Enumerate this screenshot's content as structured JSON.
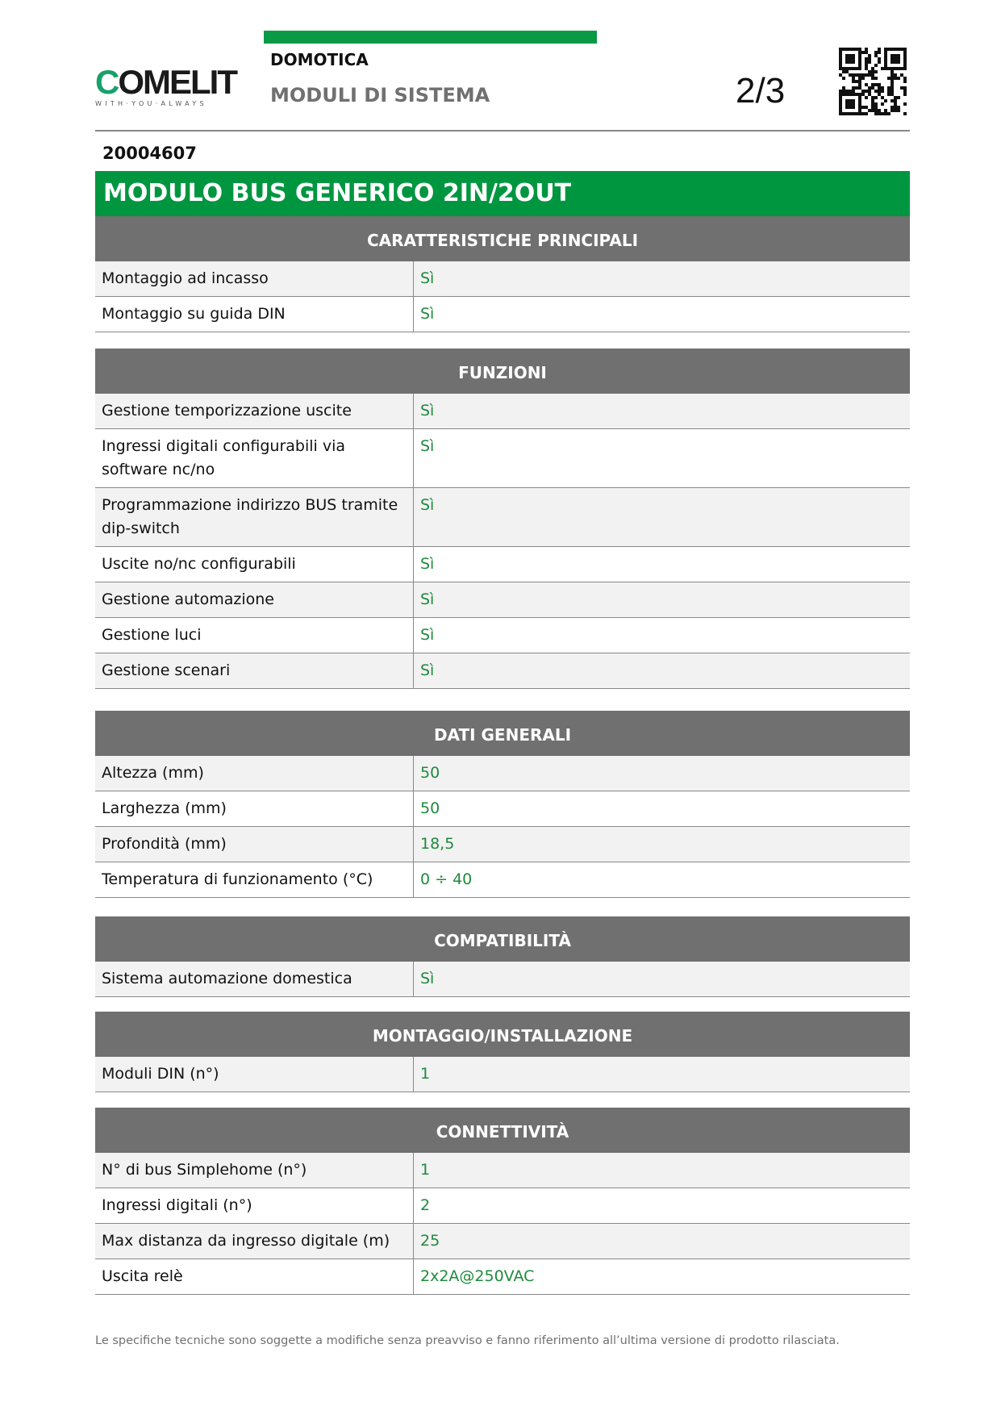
{
  "header": {
    "logo_text": "COMELIT",
    "logo_tagline": "WITH·YOU·ALWAYS",
    "category": "DOMOTICA",
    "subcategory": "MODULI DI SISTEMA",
    "page": "2/3",
    "accent": "#009640"
  },
  "product": {
    "code": "20004607",
    "title": "MODULO BUS GENERICO 2IN/2OUT"
  },
  "sections": [
    {
      "title": "CARATTERISTICHE PRINCIPALI",
      "rows": [
        [
          "Montaggio ad incasso",
          "Sì"
        ],
        [
          "Montaggio su guida DIN",
          "Sì"
        ]
      ]
    },
    {
      "title": "FUNZIONI",
      "rows": [
        [
          "Gestione temporizzazione uscite",
          "Sì"
        ],
        [
          "Ingressi digitali configurabili via software nc/no",
          "Sì"
        ],
        [
          "Programmazione indirizzo BUS tramite dip-switch",
          "Sì"
        ],
        [
          "Uscite no/nc configurabili",
          "Sì"
        ],
        [
          "Gestione automazione",
          "Sì"
        ],
        [
          "Gestione luci",
          "Sì"
        ],
        [
          "Gestione scenari",
          "Sì"
        ]
      ]
    },
    {
      "title": "DATI GENERALI",
      "rows": [
        [
          "Altezza (mm)",
          "50"
        ],
        [
          "Larghezza (mm)",
          "50"
        ],
        [
          "Profondità (mm)",
          "18,5"
        ],
        [
          "Temperatura di funzionamento (°C)",
          "0 ÷ 40"
        ]
      ]
    },
    {
      "title": "COMPATIBILITÀ",
      "rows": [
        [
          "Sistema automazione domestica",
          "Sì"
        ]
      ]
    },
    {
      "title": "MONTAGGIO/INSTALLAZIONE",
      "rows": [
        [
          "Moduli DIN (n°)",
          "1"
        ]
      ]
    },
    {
      "title": "CONNETTIVITÀ",
      "rows": [
        [
          "N° di bus Simplehome (n°)",
          "1"
        ],
        [
          "Ingressi digitali (n°)",
          "2"
        ],
        [
          "Max distanza da ingresso digitale (m)",
          "25"
        ],
        [
          "Uscita relè",
          "2x2A@250VAC"
        ]
      ]
    }
  ],
  "footer": "Le specifiche tecniche sono soggette a modifiche senza preavviso e fanno riferimento all’ultima versione di prodotto rilasciata."
}
